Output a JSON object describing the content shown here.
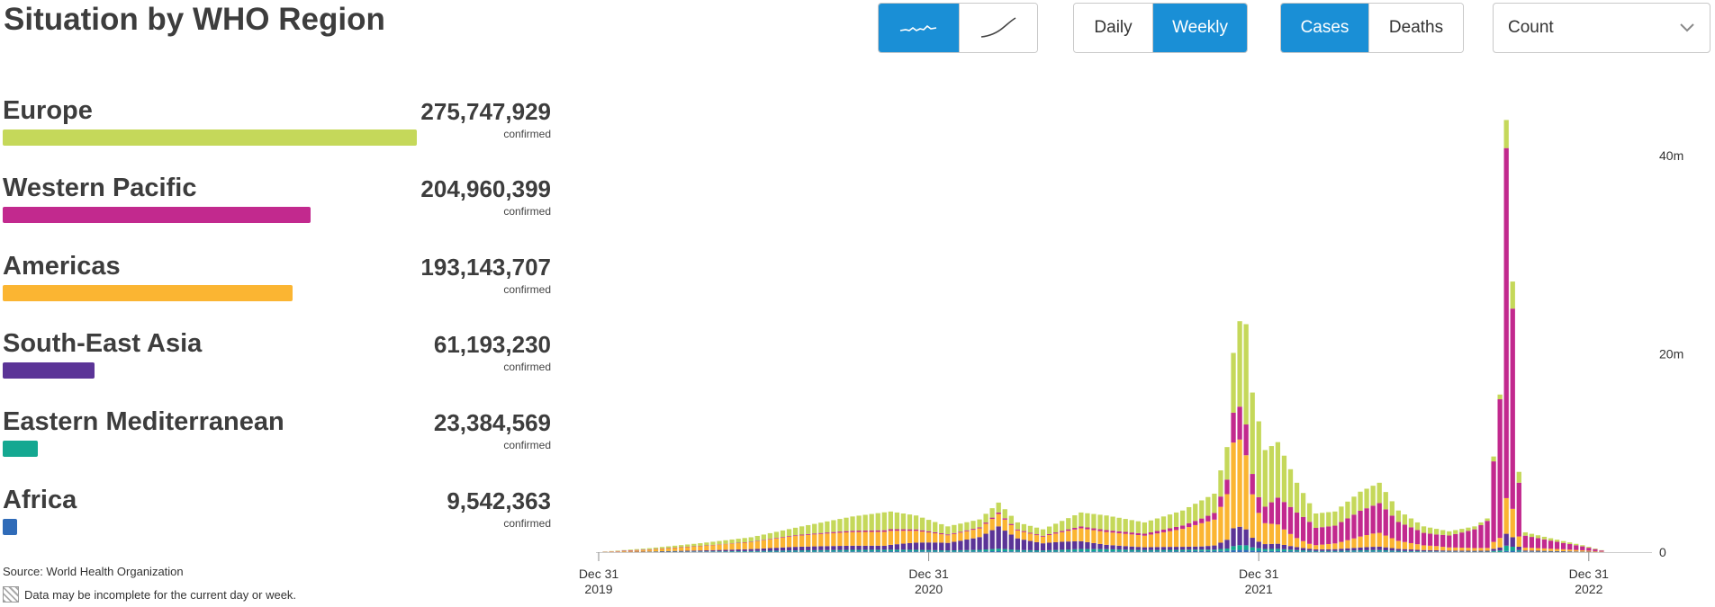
{
  "header": {
    "title": "Situation by WHO Region",
    "trend_buttons": [
      {
        "name": "trend-line-icon",
        "active": true
      },
      {
        "name": "cumulative-line-icon",
        "active": false
      }
    ],
    "period_buttons": [
      {
        "label": "Daily",
        "active": false
      },
      {
        "label": "Weekly",
        "active": true
      }
    ],
    "metric_buttons": [
      {
        "label": "Cases",
        "active": true
      },
      {
        "label": "Deaths",
        "active": false
      }
    ],
    "select": {
      "value": "Count"
    },
    "accent_color": "#1a8fd6"
  },
  "regions": [
    {
      "name": "Europe",
      "value": "275,747,929",
      "sub": "confirmed",
      "count": 275747929,
      "color": "#c5d85a"
    },
    {
      "name": "Western Pacific",
      "value": "204,960,399",
      "sub": "confirmed",
      "count": 204960399,
      "color": "#c2298e"
    },
    {
      "name": "Americas",
      "value": "193,143,707",
      "sub": "confirmed",
      "count": 193143707,
      "color": "#fbb532"
    },
    {
      "name": "South-East Asia",
      "value": "61,193,230",
      "sub": "confirmed",
      "count": 61193230,
      "color": "#5b3497"
    },
    {
      "name": "Eastern Mediterranean",
      "value": "23,384,569",
      "sub": "confirmed",
      "count": 23384569,
      "color": "#14a891"
    },
    {
      "name": "Africa",
      "value": "9,542,363",
      "sub": "confirmed",
      "count": 9542363,
      "color": "#2f6bb8"
    }
  ],
  "footer": {
    "source": "Source:  World Health Organization",
    "note": "Data may be incomplete for the current day or week."
  },
  "chart_data": {
    "type": "bar",
    "stacked": true,
    "title": "",
    "xlabel": "",
    "ylabel": "",
    "ylim": [
      0,
      45000000
    ],
    "yticks": [
      {
        "value": 0,
        "label": "0"
      },
      {
        "value": 20000000,
        "label": "20m"
      },
      {
        "value": 40000000,
        "label": "40m"
      }
    ],
    "xticks": [
      {
        "week": 0,
        "line1": "Dec 31",
        "line2": "2019"
      },
      {
        "week": 52,
        "line1": "Dec 31",
        "line2": "2020"
      },
      {
        "week": 104,
        "line1": "Dec 31",
        "line2": "2021"
      },
      {
        "week": 156,
        "line1": "Dec 31",
        "line2": "2022"
      }
    ],
    "x_unit": "weeks since Dec 31 2019",
    "series_order": [
      "Africa",
      "Eastern Mediterranean",
      "South-East Asia",
      "Americas",
      "Western Pacific",
      "Europe"
    ],
    "series_colors": [
      "#2f6bb8",
      "#14a891",
      "#5b3497",
      "#fbb532",
      "#c2298e",
      "#c5d85a"
    ],
    "total_keys": [
      [
        0,
        0.01
      ],
      [
        8,
        0.4
      ],
      [
        16,
        0.9
      ],
      [
        24,
        1.5
      ],
      [
        32,
        2.6
      ],
      [
        40,
        3.6
      ],
      [
        46,
        4.1
      ],
      [
        50,
        3.7
      ],
      [
        55,
        2.6
      ],
      [
        60,
        3.3
      ],
      [
        63,
        5.0
      ],
      [
        66,
        3.0
      ],
      [
        70,
        2.3
      ],
      [
        76,
        4.0
      ],
      [
        80,
        3.7
      ],
      [
        86,
        3.0
      ],
      [
        92,
        4.2
      ],
      [
        97,
        5.9
      ],
      [
        99,
        10.6
      ],
      [
        100,
        20.1
      ],
      [
        101,
        23.3
      ],
      [
        102,
        23.0
      ],
      [
        103,
        16.1
      ],
      [
        105,
        10.3
      ],
      [
        107,
        11.1
      ],
      [
        110,
        7.0
      ],
      [
        113,
        3.9
      ],
      [
        116,
        4.1
      ],
      [
        120,
        6.1
      ],
      [
        123,
        7.0
      ],
      [
        126,
        4.2
      ],
      [
        130,
        2.6
      ],
      [
        134,
        2.1
      ],
      [
        138,
        2.6
      ],
      [
        140,
        3.4
      ],
      [
        142,
        15.9
      ],
      [
        143,
        43.6
      ],
      [
        144,
        27.3
      ],
      [
        145,
        8.1
      ],
      [
        146,
        2.0
      ],
      [
        150,
        1.4
      ],
      [
        155,
        0.7
      ],
      [
        158,
        0.2
      ]
    ],
    "share_keys": [
      [
        0,
        [
          0.01,
          0.02,
          0.02,
          0.25,
          0.4,
          0.3
        ]
      ],
      [
        10,
        [
          0.02,
          0.05,
          0.1,
          0.5,
          0.03,
          0.3
        ]
      ],
      [
        30,
        [
          0.02,
          0.05,
          0.15,
          0.45,
          0.03,
          0.3
        ]
      ],
      [
        45,
        [
          0.02,
          0.04,
          0.1,
          0.35,
          0.04,
          0.45
        ]
      ],
      [
        63,
        [
          0.02,
          0.05,
          0.45,
          0.25,
          0.03,
          0.2
        ]
      ],
      [
        80,
        [
          0.02,
          0.06,
          0.12,
          0.35,
          0.05,
          0.4
        ]
      ],
      [
        95,
        [
          0.02,
          0.03,
          0.06,
          0.45,
          0.09,
          0.35
        ]
      ],
      [
        100,
        [
          0.01,
          0.02,
          0.09,
          0.43,
          0.15,
          0.3
        ]
      ],
      [
        104,
        [
          0.01,
          0.02,
          0.05,
          0.22,
          0.12,
          0.58
        ]
      ],
      [
        112,
        [
          0.01,
          0.02,
          0.04,
          0.1,
          0.45,
          0.38
        ]
      ],
      [
        122,
        [
          0.01,
          0.02,
          0.05,
          0.2,
          0.42,
          0.3
        ]
      ],
      [
        132,
        [
          0.01,
          0.02,
          0.05,
          0.18,
          0.5,
          0.24
        ]
      ],
      [
        142,
        [
          0.0,
          0.01,
          0.02,
          0.06,
          0.88,
          0.03
        ]
      ],
      [
        146,
        [
          0.01,
          0.02,
          0.05,
          0.15,
          0.6,
          0.17
        ]
      ],
      [
        158,
        [
          0.01,
          0.02,
          0.05,
          0.2,
          0.55,
          0.17
        ]
      ]
    ]
  }
}
